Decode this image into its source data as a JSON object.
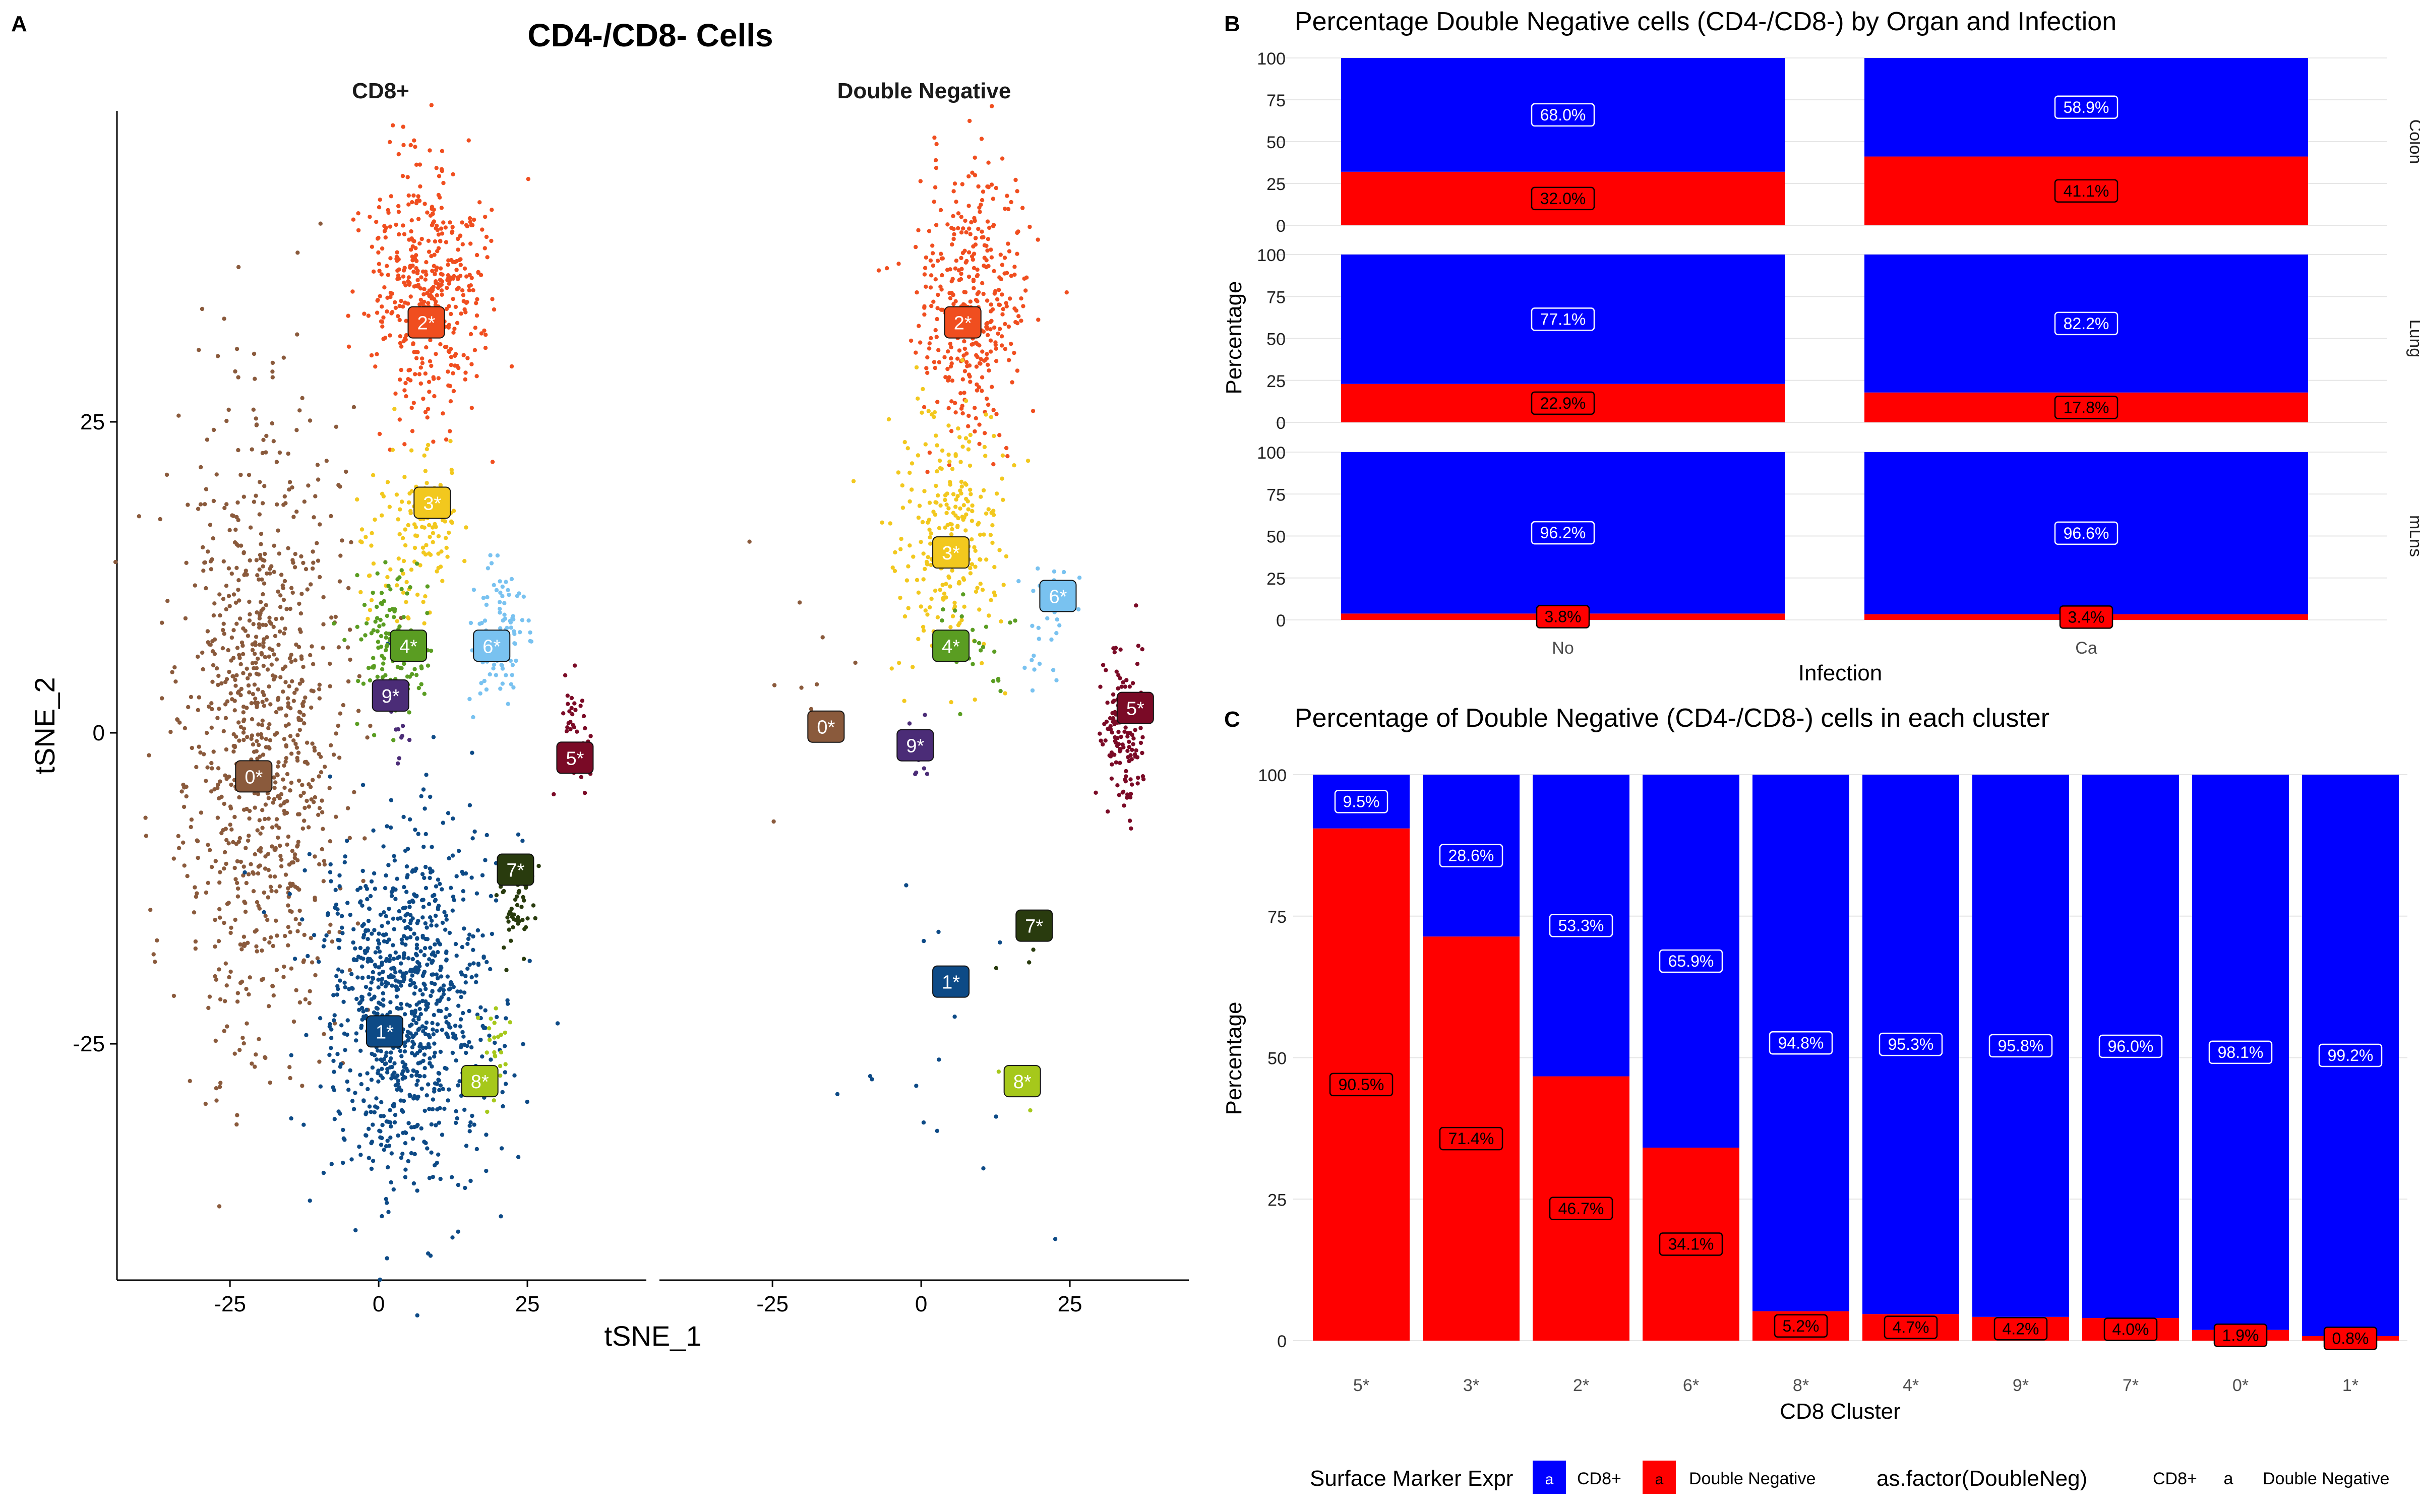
{
  "panels": {
    "a": {
      "letter": "A",
      "title": "CD4-/CD8- Cells"
    },
    "b": {
      "letter": "B"
    },
    "c": {
      "letter": "C"
    }
  },
  "colors": {
    "cd8": "#0000ff",
    "double_negative": "#ff0000",
    "grid": "#e6e6e6",
    "axis_text": "#4d4d4d"
  },
  "chart_data": [
    {
      "id": "tsne",
      "type": "scatter",
      "title": "CD4-/CD8- Cells",
      "xlabel": "tSNE_1",
      "ylabel": "tSNE_2",
      "xlim": [
        -44,
        45
      ],
      "ylim": [
        -44,
        50
      ],
      "xticks": [
        -25,
        0,
        25
      ],
      "yticks": [
        -25,
        0,
        25
      ],
      "facets": [
        "CD8+",
        "Double Negative"
      ],
      "grid": false,
      "clusters": [
        {
          "label": "0*",
          "color": "#8a5a3c",
          "cd8": {
            "cx": -20,
            "cy": 0,
            "sx": 7,
            "sy": 13,
            "n": 900,
            "label_at": [
              -21,
              -3.5
            ]
          },
          "dn": {
            "cx": -20,
            "cy": 1,
            "sx": 4,
            "sy": 5,
            "n": 10,
            "label_at": [
              -16,
              0.5
            ]
          }
        },
        {
          "label": "1*",
          "color": "#0d4a86",
          "cd8": {
            "cx": 5,
            "cy": -22,
            "sx": 7,
            "sy": 7,
            "n": 950,
            "label_at": [
              1,
              -24
            ]
          },
          "dn": {
            "cx": 2,
            "cy": -28,
            "sx": 8,
            "sy": 6,
            "n": 15,
            "label_at": [
              5,
              -20
            ]
          }
        },
        {
          "label": "2*",
          "color": "#f04e1f",
          "cd8": {
            "cx": 8,
            "cy": 36,
            "sx": 5,
            "sy": 5,
            "n": 450,
            "label_at": [
              8,
              33
            ]
          },
          "dn": {
            "cx": 8,
            "cy": 35,
            "sx": 4.5,
            "sy": 5.5,
            "n": 380,
            "label_at": [
              7,
              33
            ]
          }
        },
        {
          "label": "3*",
          "color": "#f2c81e",
          "cd8": {
            "cx": 6,
            "cy": 16,
            "sx": 4,
            "sy": 4,
            "n": 140,
            "label_at": [
              9,
              18.5
            ]
          },
          "dn": {
            "cx": 5,
            "cy": 16,
            "sx": 4.5,
            "sy": 5,
            "n": 260,
            "label_at": [
              5,
              14.5
            ]
          }
        },
        {
          "label": "4*",
          "color": "#5a9d22",
          "cd8": {
            "cx": 2,
            "cy": 7,
            "sx": 3,
            "sy": 3,
            "n": 120,
            "label_at": [
              5,
              7
            ]
          },
          "dn": {
            "cx": 8,
            "cy": 7,
            "sx": 3,
            "sy": 2,
            "n": 25,
            "label_at": [
              5,
              7
            ]
          }
        },
        {
          "label": "5*",
          "color": "#7a0a26",
          "cd8": {
            "cx": 33,
            "cy": 0,
            "sx": 1.5,
            "sy": 2.5,
            "n": 35,
            "label_at": [
              33,
              -2
            ]
          },
          "dn": {
            "cx": 34,
            "cy": 0,
            "sx": 1.8,
            "sy": 3,
            "n": 130,
            "label_at": [
              36,
              2
            ]
          }
        },
        {
          "label": "6*",
          "color": "#79c2f0",
          "cd8": {
            "cx": 21,
            "cy": 8,
            "sx": 2.5,
            "sy": 3,
            "n": 90,
            "label_at": [
              19,
              7
            ]
          },
          "dn": {
            "cx": 20,
            "cy": 9,
            "sx": 3,
            "sy": 3,
            "n": 30,
            "label_at": [
              23,
              11
            ]
          }
        },
        {
          "label": "7*",
          "color": "#293b0e",
          "cd8": {
            "cx": 23,
            "cy": -14,
            "sx": 1.5,
            "sy": 2,
            "n": 55,
            "label_at": [
              23,
              -11
            ]
          },
          "dn": {
            "cx": 17,
            "cy": -16,
            "sx": 2,
            "sy": 2,
            "n": 5,
            "label_at": [
              19,
              -15.5
            ]
          }
        },
        {
          "label": "8*",
          "color": "#a6c81b",
          "cd8": {
            "cx": 19,
            "cy": -26,
            "sx": 1.2,
            "sy": 2,
            "n": 25,
            "label_at": [
              17,
              -28
            ]
          },
          "dn": {
            "cx": 16,
            "cy": -29,
            "sx": 1.5,
            "sy": 1.5,
            "n": 4,
            "label_at": [
              17,
              -28
            ]
          }
        },
        {
          "label": "9*",
          "color": "#4b2c77",
          "cd8": {
            "cx": 3,
            "cy": 2,
            "sx": 1.5,
            "sy": 2,
            "n": 20,
            "label_at": [
              2,
              3
            ]
          },
          "dn": {
            "cx": -2,
            "cy": -2,
            "sx": 2,
            "sy": 2,
            "n": 8,
            "label_at": [
              -1,
              -1
            ]
          }
        }
      ]
    },
    {
      "id": "organ",
      "type": "bar",
      "stacked": true,
      "title": "Percentage Double Negative cells (CD4-/CD8-) by Organ and Infection",
      "xlabel": "Infection",
      "ylabel": "Percentage",
      "categories": [
        "No",
        "Ca"
      ],
      "ylim": [
        0,
        100
      ],
      "yticks": [
        0,
        25,
        50,
        75,
        100
      ],
      "facets": [
        {
          "name": "Colon",
          "cd8": [
            68.0,
            58.9
          ],
          "dn": [
            32.0,
            41.1
          ],
          "cd8_labels": [
            "68.0%",
            "58.9%"
          ],
          "dn_labels": [
            "32.0%",
            "41.1%"
          ]
        },
        {
          "name": "Lung",
          "cd8": [
            77.1,
            82.2
          ],
          "dn": [
            22.9,
            17.8
          ],
          "cd8_labels": [
            "77.1%",
            "82.2%"
          ],
          "dn_labels": [
            "22.9%",
            "17.8%"
          ]
        },
        {
          "name": "mLns",
          "cd8": [
            96.2,
            96.6
          ],
          "dn": [
            3.8,
            3.4
          ],
          "cd8_labels": [
            "96.2%",
            "96.6%"
          ],
          "dn_labels": [
            "3.8%",
            "3.4%"
          ]
        }
      ]
    },
    {
      "id": "cluster",
      "type": "bar",
      "stacked": true,
      "title": "Percentage of Double Negative (CD4-/CD8-) cells in each cluster",
      "xlabel": "CD8 Cluster",
      "ylabel": "Percentage",
      "categories": [
        "5*",
        "3*",
        "2*",
        "6*",
        "8*",
        "4*",
        "9*",
        "7*",
        "0*",
        "1*"
      ],
      "ylim": [
        0,
        100
      ],
      "yticks": [
        0,
        25,
        50,
        75,
        100
      ],
      "series": [
        {
          "name": "CD8+",
          "values": [
            9.5,
            28.6,
            53.3,
            65.9,
            94.8,
            95.3,
            95.8,
            96.0,
            98.1,
            99.2
          ],
          "labels": [
            "9.5%",
            "28.6%",
            "53.3%",
            "65.9%",
            "94.8%",
            "95.3%",
            "95.8%",
            "96.0%",
            "98.1%",
            "99.2%"
          ]
        },
        {
          "name": "Double Negative",
          "values": [
            90.5,
            71.4,
            46.7,
            34.1,
            5.2,
            4.7,
            4.2,
            4.0,
            1.9,
            0.8
          ],
          "labels": [
            "90.5%",
            "71.4%",
            "46.7%",
            "34.1%",
            "5.2%",
            "4.7%",
            "4.2%",
            "4.0%",
            "1.9%",
            "0.8%"
          ]
        }
      ]
    }
  ],
  "legend": {
    "title": "Surface Marker Expr",
    "key_glyph": "a",
    "items": [
      "CD8+",
      "Double Negative"
    ],
    "title2": "as.factor(DoubleNeg)",
    "items2": [
      "CD8+",
      "Double Negative"
    ]
  }
}
